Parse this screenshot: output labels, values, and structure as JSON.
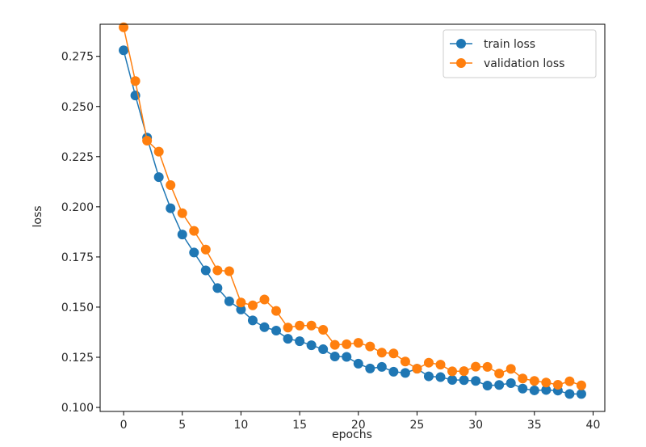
{
  "chart_data": {
    "type": "line",
    "title": "",
    "xlabel": "epochs",
    "ylabel": "loss",
    "xlim": [
      -2,
      41
    ],
    "ylim": [
      0.098,
      0.291
    ],
    "xticks": [
      0,
      5,
      10,
      15,
      20,
      25,
      30,
      35,
      40
    ],
    "yticks": [
      0.1,
      0.125,
      0.15,
      0.175,
      0.2,
      0.225,
      0.25,
      0.275
    ],
    "xtick_labels": [
      "0",
      "5",
      "10",
      "15",
      "20",
      "25",
      "30",
      "35",
      "40"
    ],
    "ytick_labels": [
      "0.100",
      "0.125",
      "0.150",
      "0.175",
      "0.200",
      "0.225",
      "0.250",
      "0.275"
    ],
    "grid": false,
    "legend_position": "top-right",
    "x": [
      0,
      1,
      2,
      3,
      4,
      5,
      6,
      7,
      8,
      9,
      10,
      11,
      12,
      13,
      14,
      15,
      16,
      17,
      18,
      19,
      20,
      21,
      22,
      23,
      24,
      25,
      26,
      27,
      28,
      29,
      30,
      31,
      32,
      33,
      34,
      35,
      36,
      37,
      38,
      39
    ],
    "series": [
      {
        "name": "train loss",
        "color": "#1f77b4",
        "values": [
          0.278,
          0.2555,
          0.2345,
          0.2148,
          0.1993,
          0.1862,
          0.1772,
          0.1683,
          0.1595,
          0.1529,
          0.1488,
          0.1434,
          0.14,
          0.1383,
          0.1342,
          0.133,
          0.131,
          0.129,
          0.1254,
          0.1252,
          0.1218,
          0.1194,
          0.1202,
          0.1178,
          0.1172,
          0.1193,
          0.1155,
          0.1151,
          0.1137,
          0.1136,
          0.1132,
          0.1109,
          0.1112,
          0.1121,
          0.1094,
          0.1085,
          0.1087,
          0.1084,
          0.1067,
          0.1067
        ]
      },
      {
        "name": "validation loss",
        "color": "#ff7f0e",
        "values": [
          0.2895,
          0.2627,
          0.233,
          0.2275,
          0.2108,
          0.1968,
          0.188,
          0.1787,
          0.1683,
          0.1679,
          0.1523,
          0.1509,
          0.1538,
          0.1481,
          0.1398,
          0.1408,
          0.1408,
          0.1387,
          0.1312,
          0.1315,
          0.1322,
          0.1304,
          0.1273,
          0.1269,
          0.1229,
          0.1193,
          0.1223,
          0.1213,
          0.118,
          0.1181,
          0.1203,
          0.1202,
          0.1169,
          0.1192,
          0.1144,
          0.1132,
          0.1124,
          0.1113,
          0.113,
          0.111
        ]
      }
    ]
  }
}
